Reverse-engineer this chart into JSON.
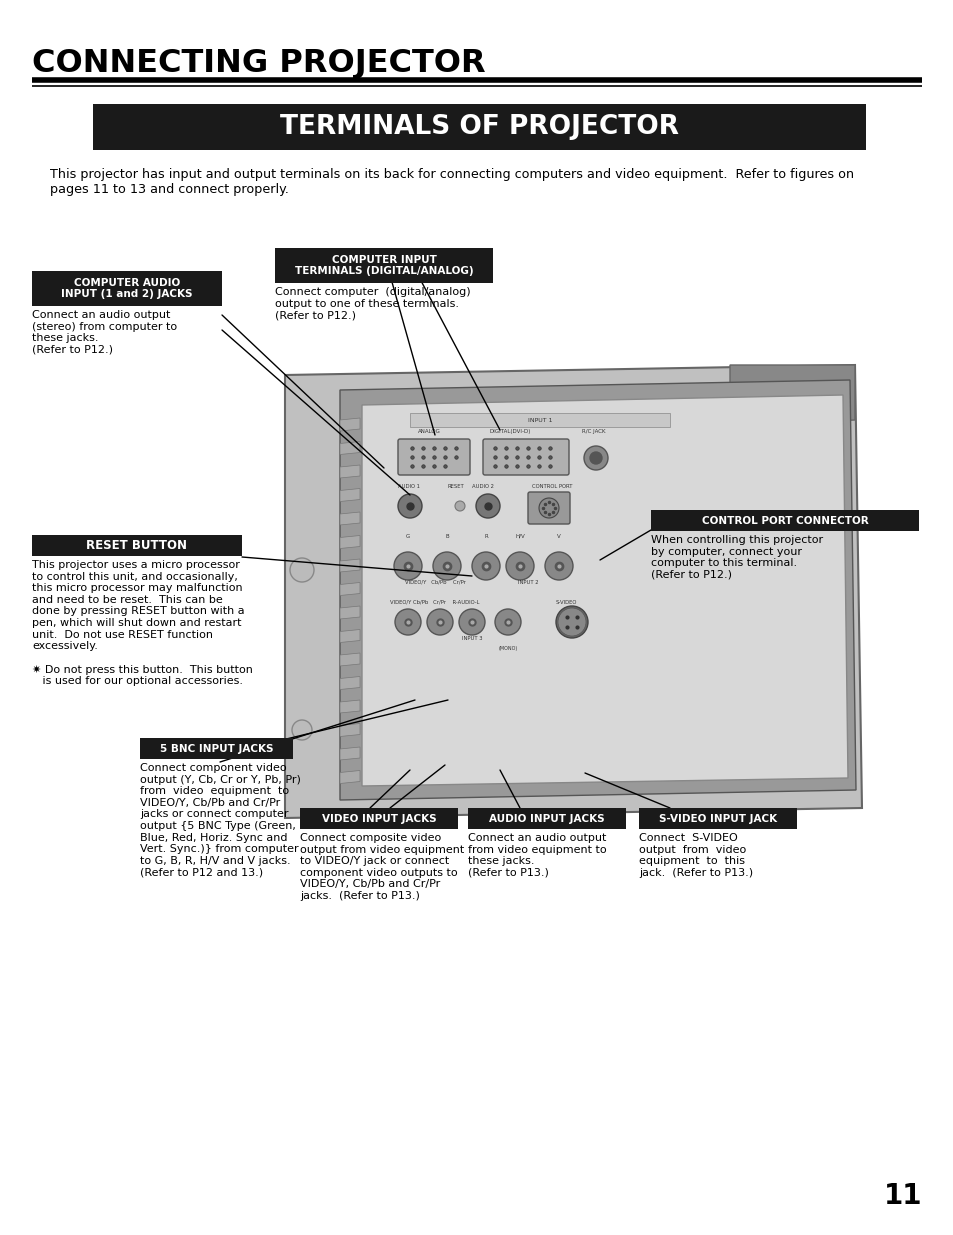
{
  "page_title": "CONNECTING PROJECTOR",
  "section_title": "TERMINALS OF PROJECTOR",
  "intro_text": "This projector has input and output terminals on its back for connecting computers and video equipment.  Refer to figures on\npages 11 to 13 and connect properly.",
  "page_number": "11",
  "labels": {
    "computer_audio": {
      "title": "COMPUTER AUDIO\nINPUT (1 and 2) JACKS",
      "body": "Connect an audio output\n(stereo) from computer to\nthese jacks.\n(Refer to P12.)"
    },
    "computer_input": {
      "title": "COMPUTER INPUT\nTERMINALS (DIGITAL/ANALOG)",
      "body": "Connect computer  (digital/analog)\noutput to one of these terminals.\n(Refer to P12.)"
    },
    "reset_button": {
      "title": "RESET BUTTON",
      "body": "This projector uses a micro processor\nto control this unit, and occasionally,\nthis micro processor may malfunction\nand need to be reset.  This can be\ndone by pressing RESET button with a\npen, which will shut down and restart\nunit.  Do not use RESET function\nexcessively.\n\n✷ Do not press this button.  This button\n   is used for our optional accessories."
    },
    "control_port": {
      "title": "CONTROL PORT CONNECTOR",
      "body": "When controlling this projector\nby computer, connect your\ncomputer to this terminal.\n(Refer to P12.)"
    },
    "video_input": {
      "title": "VIDEO INPUT JACKS",
      "body": "Connect composite video\noutput from video equipment\nto VIDEO/Y jack or connect\ncomponent video outputs to\nVIDEO/Y, Cb/Pb and Cr/Pr\njacks.  (Refer to P13.)"
    },
    "audio_input": {
      "title": "AUDIO INPUT JACKS",
      "body": "Connect an audio output\nfrom video equipment to\nthese jacks.\n(Refer to P13.)"
    },
    "s_video_input": {
      "title": "S-VIDEO INPUT JACK",
      "body": "Connect  S-VIDEO\noutput  from  video\nequipment  to  this\njack.  (Refer to P13.)"
    },
    "bnc_input": {
      "title": "5 BNC INPUT JACKS",
      "body": "Connect component video\noutput (Y, Cb, Cr or Y, Pb, Pr)\nfrom  video  equipment  to\nVIDEO/Y, Cb/Pb and Cr/Pr\njacks or connect computer\noutput {5 BNC Type (Green,\nBlue, Red, Horiz. Sync and\nVert. Sync.)} from computer\nto G, B, R, H/V and V jacks.\n(Refer to P12 and 13.)"
    }
  },
  "bg_color": "#ffffff",
  "title_bg": "#1a1a1a",
  "label_bg": "#1a1a1a",
  "label_fg": "#ffffff",
  "body_fg": "#000000"
}
